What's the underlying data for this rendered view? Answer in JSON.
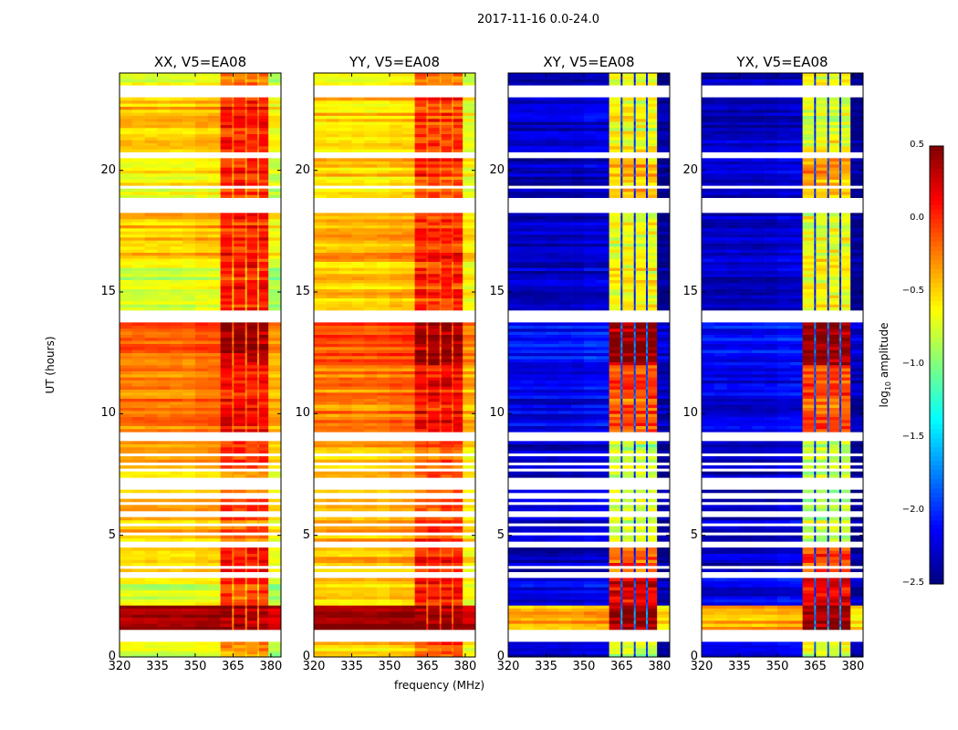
{
  "suptitle": "2017-11-16 0.0-24.0",
  "chart_data": {
    "type": "heatmap",
    "title": "2017-11-16 0.0-24.0",
    "xlabel": "frequency (MHz)",
    "ylabel": "UT (hours)",
    "xlim": [
      320,
      384
    ],
    "ylim": [
      0,
      24
    ],
    "xticks": [
      "320",
      "335",
      "350",
      "365",
      "380"
    ],
    "yticks": [
      "0",
      "5",
      "10",
      "15",
      "20"
    ],
    "colorbar": {
      "label_main": "log",
      "label_sub": "10",
      "label_rest": " amplitude",
      "range": [
        -2.5,
        0.5
      ],
      "ticks": [
        "0.5",
        "0.0",
        "−0.5",
        "−1.0",
        "−1.5",
        "−2.0",
        "−2.5"
      ],
      "colormap": "jet"
    },
    "rfi_blocks_mhz": [
      [
        360,
        364.6
      ],
      [
        365.3,
        369.8
      ],
      [
        370.5,
        374.6
      ],
      [
        375.3,
        379
      ]
    ],
    "flagged_hours": [
      [
        0.65,
        1.1
      ],
      [
        3.3,
        3.45
      ],
      [
        3.6,
        3.75
      ],
      [
        4.5,
        4.7
      ],
      [
        5.0,
        5.1
      ],
      [
        5.35,
        5.5
      ],
      [
        5.8,
        6.0
      ],
      [
        6.2,
        6.35
      ],
      [
        6.5,
        6.7
      ],
      [
        6.9,
        7.4
      ],
      [
        7.6,
        7.7
      ],
      [
        7.9,
        8.0
      ],
      [
        8.25,
        8.4
      ],
      [
        8.9,
        9.2
      ],
      [
        13.7,
        14.3
      ],
      [
        16.2,
        16.3
      ],
      [
        18.2,
        18.9
      ],
      [
        19.2,
        19.4
      ],
      [
        20.5,
        20.7
      ],
      [
        23.0,
        23.5
      ]
    ],
    "panels": [
      {
        "title": "XX, V5=EA08",
        "gap_value": -0.5,
        "segments": [
          [
            0,
            0.65,
            -0.7,
            -0.3
          ],
          [
            1.1,
            2.1,
            0.45,
            0.45
          ],
          [
            2.1,
            3.3,
            -0.75,
            -0.1
          ],
          [
            3.3,
            4.5,
            -0.6,
            0.0
          ],
          [
            4.5,
            8.9,
            -0.45,
            -0.15
          ],
          [
            9.2,
            12,
            -0.25,
            0.1
          ],
          [
            12,
            13.7,
            -0.15,
            0.4
          ],
          [
            14.3,
            16.2,
            -0.75,
            0.05
          ],
          [
            16.3,
            18.2,
            -0.45,
            0.05
          ],
          [
            18.9,
            20.5,
            -0.65,
            0.0
          ],
          [
            20.7,
            23,
            -0.45,
            0.05
          ],
          [
            23.5,
            24,
            -0.7,
            -0.2
          ]
        ]
      },
      {
        "title": "YY, V5=EA08",
        "gap_value": -0.4,
        "segments": [
          [
            0,
            0.65,
            -0.5,
            -0.15
          ],
          [
            1.1,
            2.1,
            0.45,
            0.45
          ],
          [
            2.1,
            3.3,
            -0.5,
            0.1
          ],
          [
            3.3,
            4.5,
            -0.45,
            0.05
          ],
          [
            4.5,
            8.9,
            -0.4,
            -0.1
          ],
          [
            9.2,
            12,
            -0.25,
            0.1
          ],
          [
            12,
            13.7,
            -0.1,
            0.4
          ],
          [
            14.3,
            16.2,
            -0.45,
            0.05
          ],
          [
            16.3,
            18.2,
            -0.4,
            0.0
          ],
          [
            18.9,
            20.5,
            -0.5,
            -0.05
          ],
          [
            20.7,
            23,
            -0.5,
            0.0
          ],
          [
            23.5,
            24,
            -0.65,
            -0.2
          ]
        ]
      },
      {
        "title": "XY, V5=EA08",
        "gap_value": -2.0,
        "segments": [
          [
            0,
            0.65,
            -2.3,
            -0.8
          ],
          [
            1.1,
            2.1,
            -0.4,
            0.45
          ],
          [
            2.1,
            3.3,
            -2.2,
            0.2
          ],
          [
            3.3,
            4.5,
            -2.3,
            -0.1
          ],
          [
            4.5,
            8.9,
            -2.3,
            -0.8
          ],
          [
            9.2,
            12,
            -2.2,
            -0.1
          ],
          [
            12,
            13.7,
            -2.1,
            0.45
          ],
          [
            14.3,
            16.2,
            -2.3,
            -0.6
          ],
          [
            16.3,
            18.2,
            -2.3,
            -0.7
          ],
          [
            18.9,
            20.5,
            -2.3,
            -0.4
          ],
          [
            20.7,
            23,
            -2.3,
            -0.7
          ],
          [
            23.5,
            24,
            -2.3,
            -0.6
          ]
        ]
      },
      {
        "title": "YX, V5=EA08",
        "gap_value": -2.0,
        "segments": [
          [
            0,
            0.65,
            -2.3,
            -0.8
          ],
          [
            1.1,
            2.1,
            -0.4,
            0.45
          ],
          [
            2.1,
            3.3,
            -2.2,
            0.2
          ],
          [
            3.3,
            4.5,
            -2.3,
            -0.1
          ],
          [
            4.5,
            8.9,
            -2.3,
            -0.8
          ],
          [
            9.2,
            12,
            -2.2,
            -0.1
          ],
          [
            12,
            13.7,
            -2.1,
            0.45
          ],
          [
            14.3,
            16.2,
            -2.3,
            -0.6
          ],
          [
            16.3,
            18.2,
            -2.3,
            -0.7
          ],
          [
            18.9,
            20.5,
            -2.3,
            -0.4
          ],
          [
            20.7,
            23,
            -2.3,
            -0.7
          ],
          [
            23.5,
            24,
            -2.3,
            -0.6
          ]
        ]
      }
    ]
  }
}
